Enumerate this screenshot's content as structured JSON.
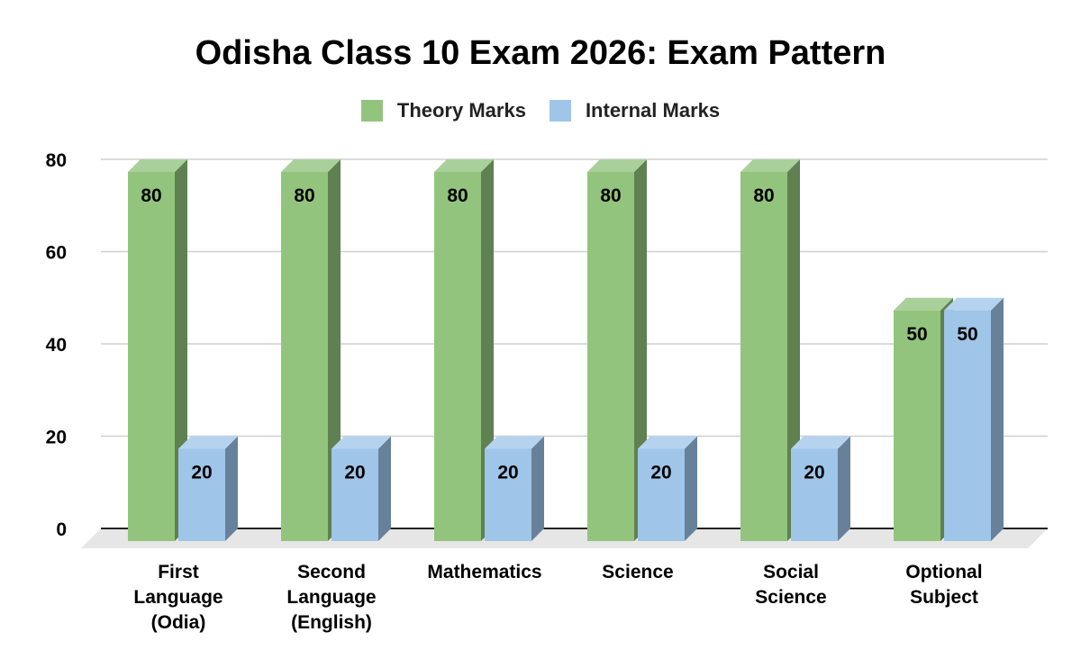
{
  "chart_data": {
    "type": "bar",
    "title": "Odisha Class 10 Exam 2026: Exam Pattern",
    "categories": [
      [
        "First",
        "Language",
        "(Odia)"
      ],
      [
        "Second",
        "Language",
        "(English)"
      ],
      [
        "Mathematics"
      ],
      [
        "Science"
      ],
      [
        "Social",
        "Science"
      ],
      [
        "Optional",
        "Subject"
      ]
    ],
    "series": [
      {
        "name": "Theory Marks",
        "values": [
          80,
          80,
          80,
          80,
          80,
          50
        ],
        "color": "#93c47d",
        "side_color": "#5f8050",
        "top_color": "#a9d09a"
      },
      {
        "name": "Internal Marks",
        "values": [
          20,
          20,
          20,
          20,
          20,
          50
        ],
        "color": "#9fc5e8",
        "side_color": "#67819a",
        "top_color": "#b5d3ef"
      }
    ],
    "yticks": [
      0,
      20,
      40,
      60,
      80
    ],
    "ylim": [
      0,
      80
    ],
    "grid": true,
    "legend_position": "top",
    "style": "3d-column",
    "data_labels": true
  }
}
